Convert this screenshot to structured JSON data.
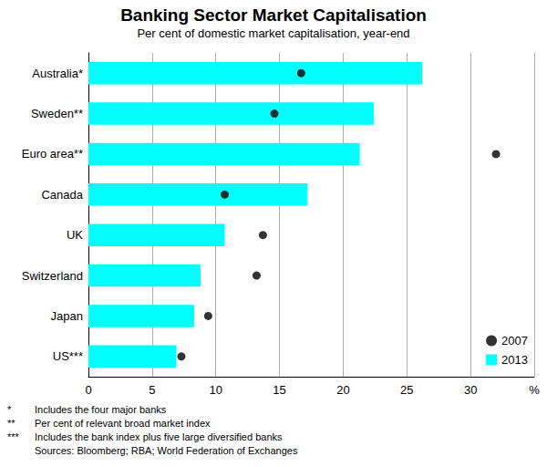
{
  "chart_data": {
    "type": "bar",
    "orientation": "horizontal",
    "title": "Banking Sector Market Capitalisation",
    "subtitle": "Per cent of domestic market capitalisation, year-end",
    "categories": [
      "Australia*",
      "Sweden**",
      "Euro area**",
      "Canada",
      "UK",
      "Switzerland",
      "Japan",
      "US***"
    ],
    "series": [
      {
        "name": "2007",
        "type": "scatter",
        "marker": "circle",
        "color": "#000000",
        "values": [
          16.7,
          14.6,
          32.0,
          10.7,
          13.7,
          13.2,
          9.4,
          7.3
        ]
      },
      {
        "name": "2013",
        "type": "bar",
        "color": "#00ffff",
        "values": [
          26.2,
          22.4,
          21.3,
          17.2,
          10.7,
          8.8,
          8.3,
          6.9
        ]
      }
    ],
    "xlim": [
      0,
      35
    ],
    "xticks": [
      0,
      5,
      10,
      15,
      20,
      25,
      30,
      {
        "value": 35,
        "label": "%"
      }
    ],
    "grid": true,
    "legend": "lower right",
    "data_labels": false,
    "notes": [
      {
        "mark": "*",
        "text": "Includes the four major banks"
      },
      {
        "mark": "**",
        "text": "Per cent of relevant broad market index"
      },
      {
        "mark": "***",
        "text": "Includes the bank index plus five large diversified banks"
      }
    ],
    "sources": "Sources: Bloomberg; RBA; World Federation of Exchanges"
  }
}
